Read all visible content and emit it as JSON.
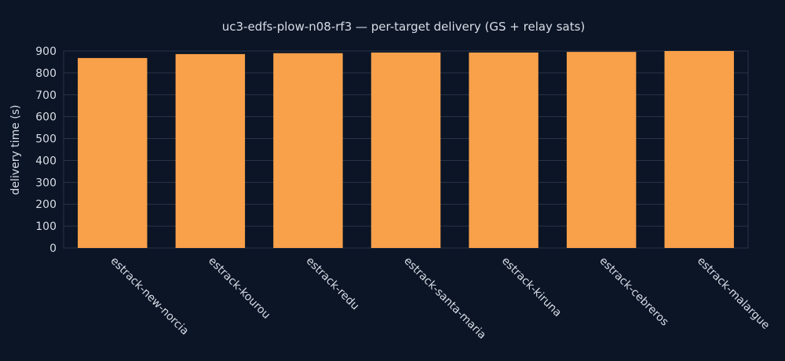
{
  "chart_data": {
    "type": "bar",
    "title": "uc3-edfs-plow-n08-rf3 — per-target delivery (GS + relay sats)",
    "xlabel": "",
    "ylabel": "delivery time (s)",
    "categories": [
      "estrack-new-norcia",
      "estrack-kourou",
      "estrack-redu",
      "estrack-santa-maria",
      "estrack-kiruna",
      "estrack-cebreros",
      "estrack-malargue"
    ],
    "values": [
      868,
      886,
      890,
      893,
      893,
      896,
      900
    ],
    "ylim": [
      0,
      900
    ],
    "yticks": [
      0,
      100,
      200,
      300,
      400,
      500,
      600,
      700,
      800,
      900
    ],
    "grid": true,
    "legend": "none",
    "colors": {
      "bar": "#f8a04a",
      "background": "#0b1526",
      "grid": "#2a3448",
      "text": "#d8dde6"
    }
  }
}
